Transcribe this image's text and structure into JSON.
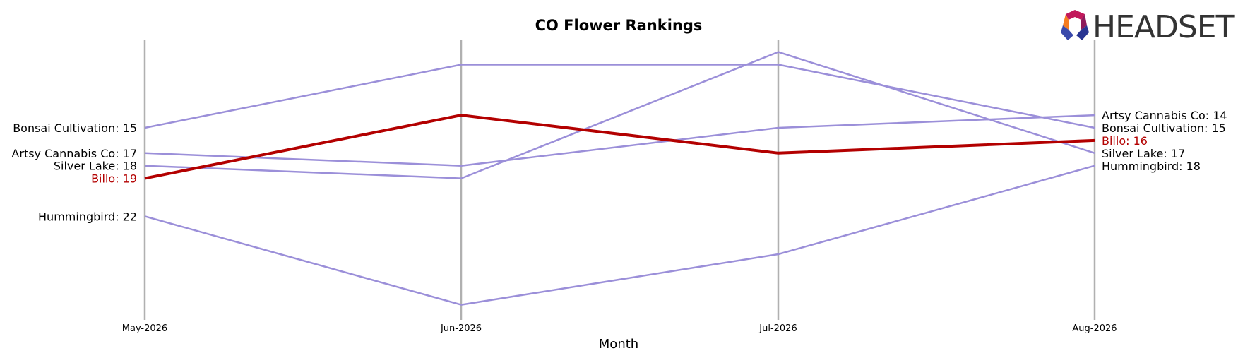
{
  "chart_data": {
    "type": "line",
    "title": "CO Flower Rankings",
    "xlabel": "Month",
    "ylabel": "",
    "categories": [
      "May-2026",
      "Jun-2026",
      "Jul-2026",
      "Aug-2026"
    ],
    "y_axis_inverted": true,
    "ylim": [
      25,
      10
    ],
    "highlight_series": "Billo",
    "series": [
      {
        "name": "Bonsai Cultivation",
        "values": [
          15,
          10,
          10,
          15
        ],
        "color": "#9b8fd9"
      },
      {
        "name": "Artsy Cannabis Co",
        "values": [
          17,
          18,
          15,
          14
        ],
        "color": "#9b8fd9"
      },
      {
        "name": "Silver Lake",
        "values": [
          18,
          19,
          9,
          17
        ],
        "color": "#9b8fd9"
      },
      {
        "name": "Hummingbird",
        "values": [
          22,
          29,
          25,
          18
        ],
        "color": "#9b8fd9"
      },
      {
        "name": "Billo",
        "values": [
          19,
          14,
          17,
          16
        ],
        "color": "#b30000"
      }
    ],
    "left_labels": [
      {
        "series": "Bonsai Cultivation",
        "text": "Bonsai Cultivation: 15"
      },
      {
        "series": "Artsy Cannabis Co",
        "text": "Artsy Cannabis Co: 17"
      },
      {
        "series": "Silver Lake",
        "text": "Silver Lake: 18"
      },
      {
        "series": "Billo",
        "text": "Billo: 19"
      },
      {
        "series": "Hummingbird",
        "text": "Hummingbird: 22"
      }
    ],
    "right_labels": [
      {
        "series": "Artsy Cannabis Co",
        "text": "Artsy Cannabis Co: 14"
      },
      {
        "series": "Bonsai Cultivation",
        "text": "Bonsai Cultivation: 15"
      },
      {
        "series": "Billo",
        "text": "Billo: 16"
      },
      {
        "series": "Silver Lake",
        "text": "Silver Lake: 17"
      },
      {
        "series": "Hummingbird",
        "text": "Hummingbird: 18"
      }
    ]
  },
  "logo": {
    "text": "HEADSET"
  },
  "colors": {
    "axis_line": "#b0b0b0",
    "series_default": "#9b8fd9",
    "highlight": "#b30000",
    "label_default": "#000000"
  }
}
